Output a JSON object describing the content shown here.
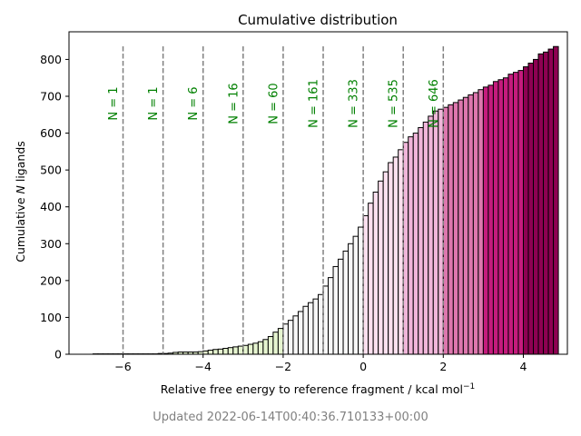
{
  "chart_data": {
    "type": "bar",
    "title": "Cumulative distribution",
    "xlabel_main": "Relative free energy to reference fragment / kcal mol",
    "xlabel_sup": "−1",
    "ylabel_pre": "Cumulative ",
    "ylabel_italic": "N",
    "ylabel_post": " ligands",
    "xlim": [
      -7.35,
      5.1
    ],
    "ylim": [
      0,
      875
    ],
    "xticks": [
      -6,
      -4,
      -2,
      0,
      2,
      4
    ],
    "xtick_labels": [
      "−6",
      "−4",
      "−2",
      "0",
      "2",
      "4"
    ],
    "yticks": [
      0,
      100,
      200,
      300,
      400,
      500,
      600,
      700,
      800
    ],
    "ytick_labels": [
      "0",
      "100",
      "200",
      "300",
      "400",
      "500",
      "600",
      "700",
      "800"
    ],
    "bin_width": 0.125,
    "bin_start": -6.75,
    "cumulative_values": [
      1,
      1,
      1,
      1,
      1,
      1,
      1,
      1,
      1,
      1,
      1,
      1,
      1,
      2,
      2,
      3,
      5,
      6,
      6,
      6,
      6,
      7,
      9,
      11,
      13,
      14,
      16,
      18,
      20,
      22,
      24,
      27,
      30,
      34,
      40,
      48,
      60,
      70,
      82,
      92,
      104,
      116,
      130,
      140,
      150,
      162,
      185,
      208,
      238,
      258,
      280,
      300,
      320,
      345,
      376,
      410,
      440,
      470,
      495,
      520,
      535,
      555,
      575,
      590,
      600,
      615,
      630,
      646,
      660,
      665,
      670,
      677,
      683,
      690,
      697,
      704,
      710,
      718,
      725,
      730,
      740,
      745,
      750,
      760,
      765,
      770,
      780,
      790,
      800,
      815,
      820,
      828,
      835
    ],
    "bar_colors": {
      "neg_far": "#e6f5d0",
      "neg_near": "#f7f7f7",
      "pos_0": "#fde0ef",
      "pos_1": "#f1b6da",
      "pos_2": "#de77ae",
      "pos_3": "#c51b7d",
      "pos_4": "#8e0152"
    },
    "annotation_color": "#008000",
    "dash_color": "#808080",
    "annotations": [
      {
        "x": -6,
        "label": "N = 1"
      },
      {
        "x": -5,
        "label": "N = 1"
      },
      {
        "x": -4,
        "label": "N = 6"
      },
      {
        "x": -3,
        "label": "N = 16"
      },
      {
        "x": -2,
        "label": "N = 60"
      },
      {
        "x": -1,
        "label": "N = 161"
      },
      {
        "x": 0,
        "label": "N = 333"
      },
      {
        "x": 1,
        "label": "N = 535"
      },
      {
        "x": 2,
        "label": "N = 646"
      }
    ]
  },
  "footer": {
    "updated": "Updated 2022-06-14T00:40:36.710133+00:00"
  }
}
